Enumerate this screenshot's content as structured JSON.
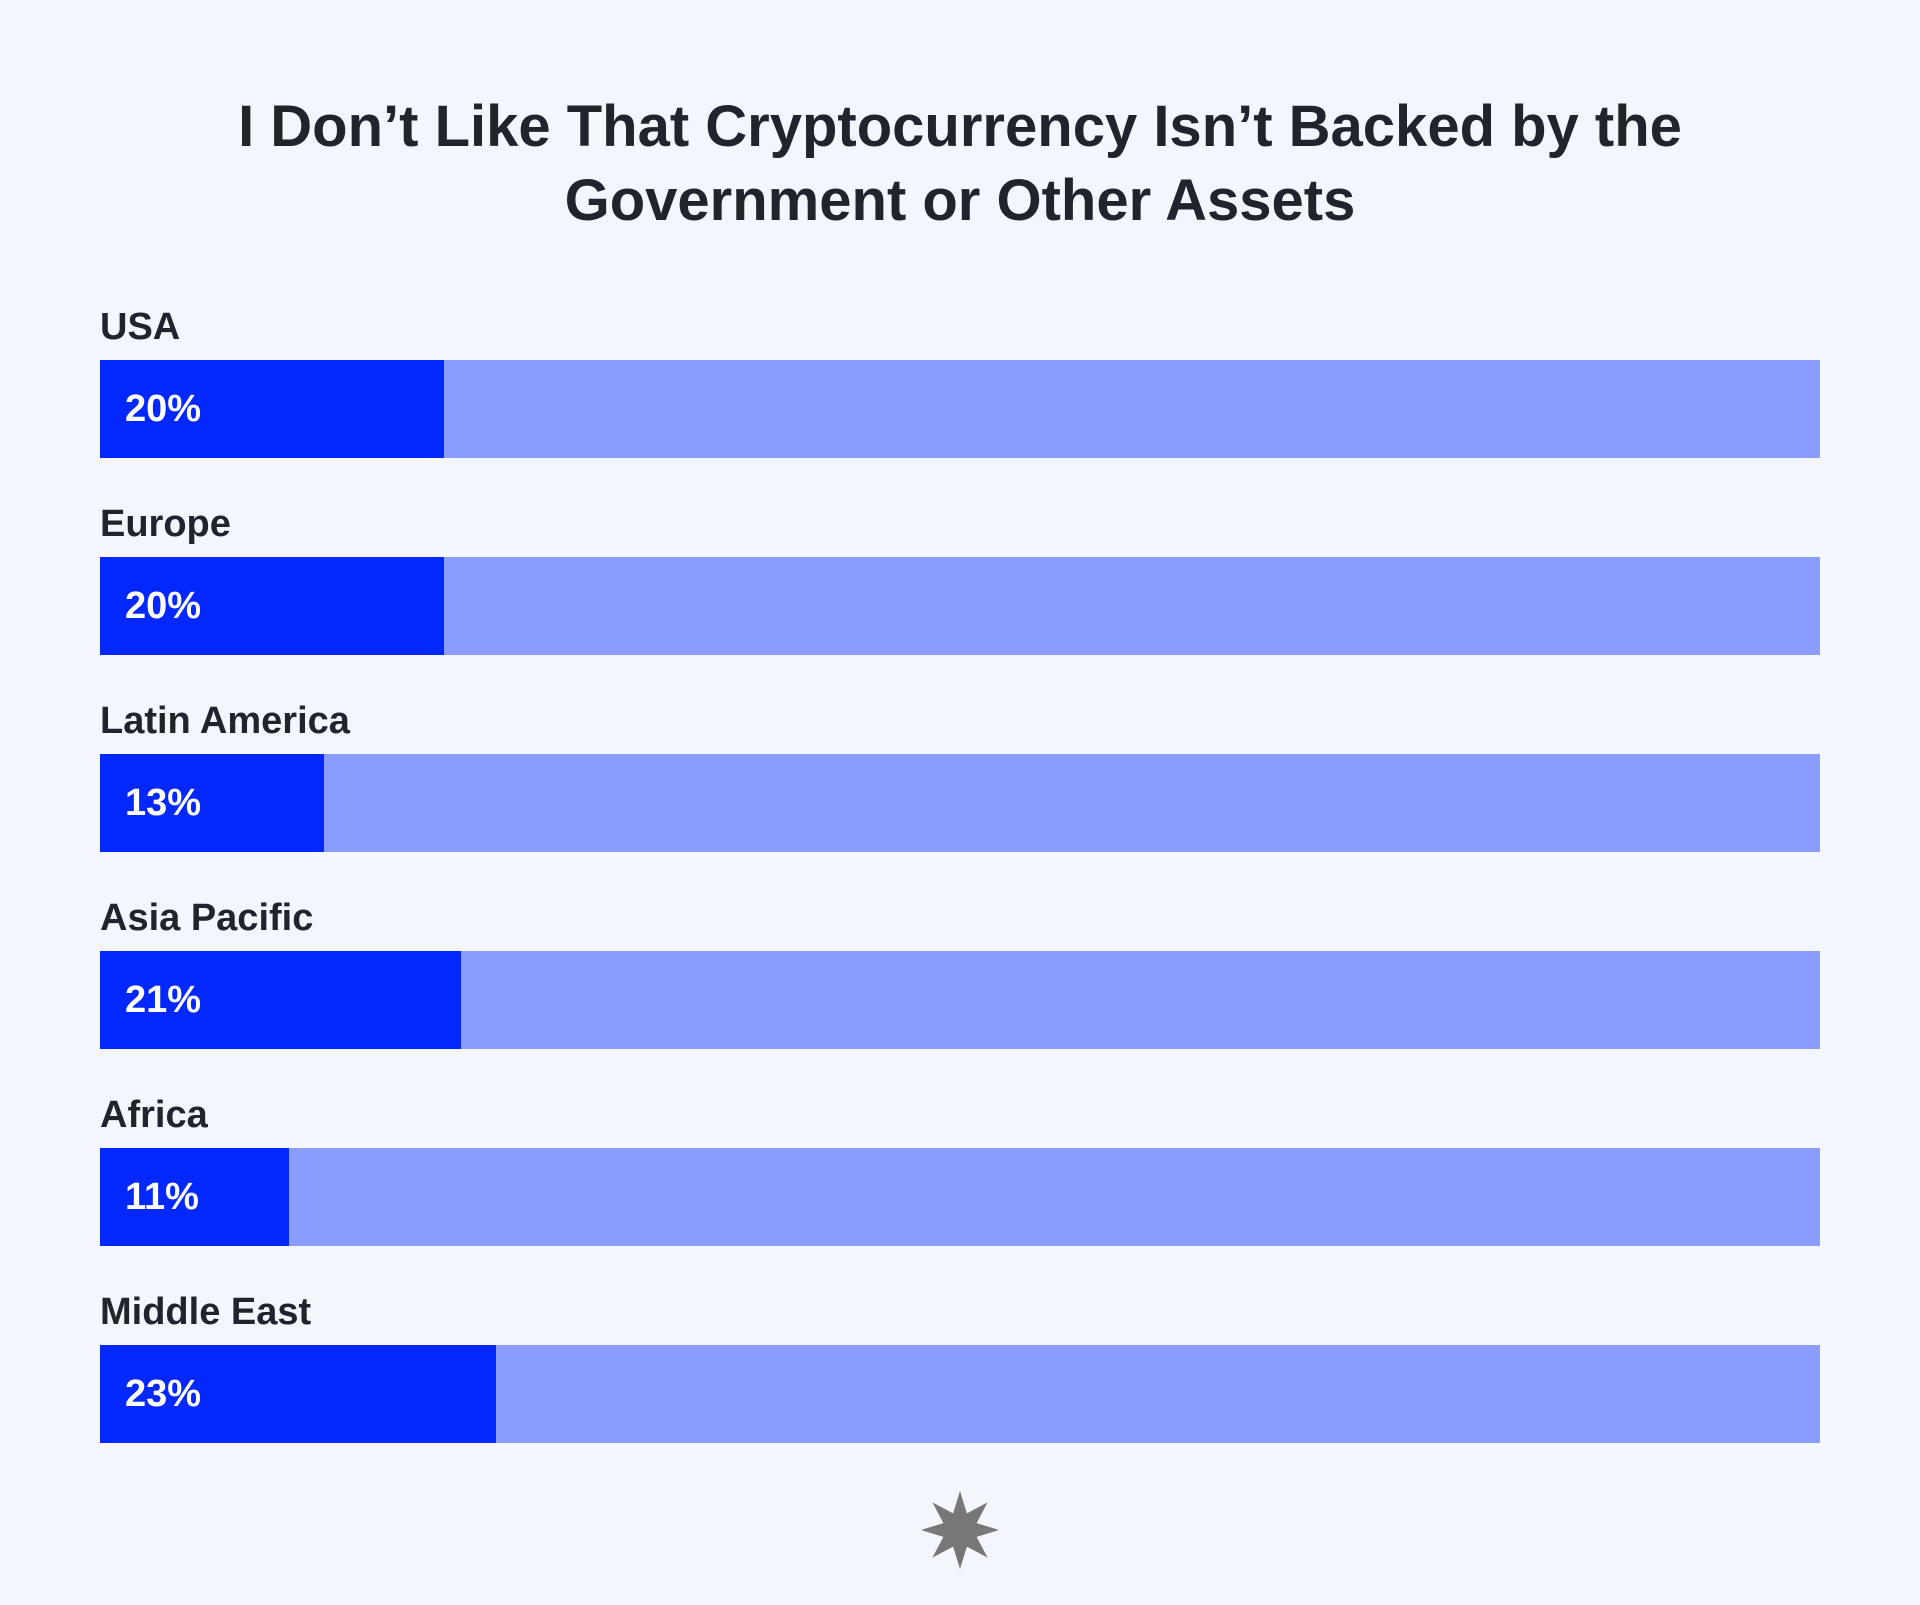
{
  "chart_data": {
    "type": "bar",
    "orientation": "horizontal",
    "title": "I Don’t Like That Cryptocurrency Isn’t Backed by the Government or Other Assets",
    "title_lines": [
      "I Don’t Like That Cryptocurrency Isn’t Backed by the",
      "Government or Other Assets"
    ],
    "categories": [
      "USA",
      "Europe",
      "Latin America",
      "Asia Pacific",
      "Africa",
      "Middle East"
    ],
    "values": [
      20,
      20,
      13,
      21,
      11,
      23
    ],
    "value_labels": [
      "20%",
      "20%",
      "13%",
      "21%",
      "11%",
      "23%"
    ],
    "xlim": [
      0,
      100
    ],
    "grid": false,
    "colors": {
      "fill": "#0228fd",
      "track": "#8a9cfd",
      "background": "#f4f6fd",
      "text": "#22242b",
      "logo": "#777777"
    }
  },
  "logo": {
    "icon": "star-burst-icon"
  }
}
